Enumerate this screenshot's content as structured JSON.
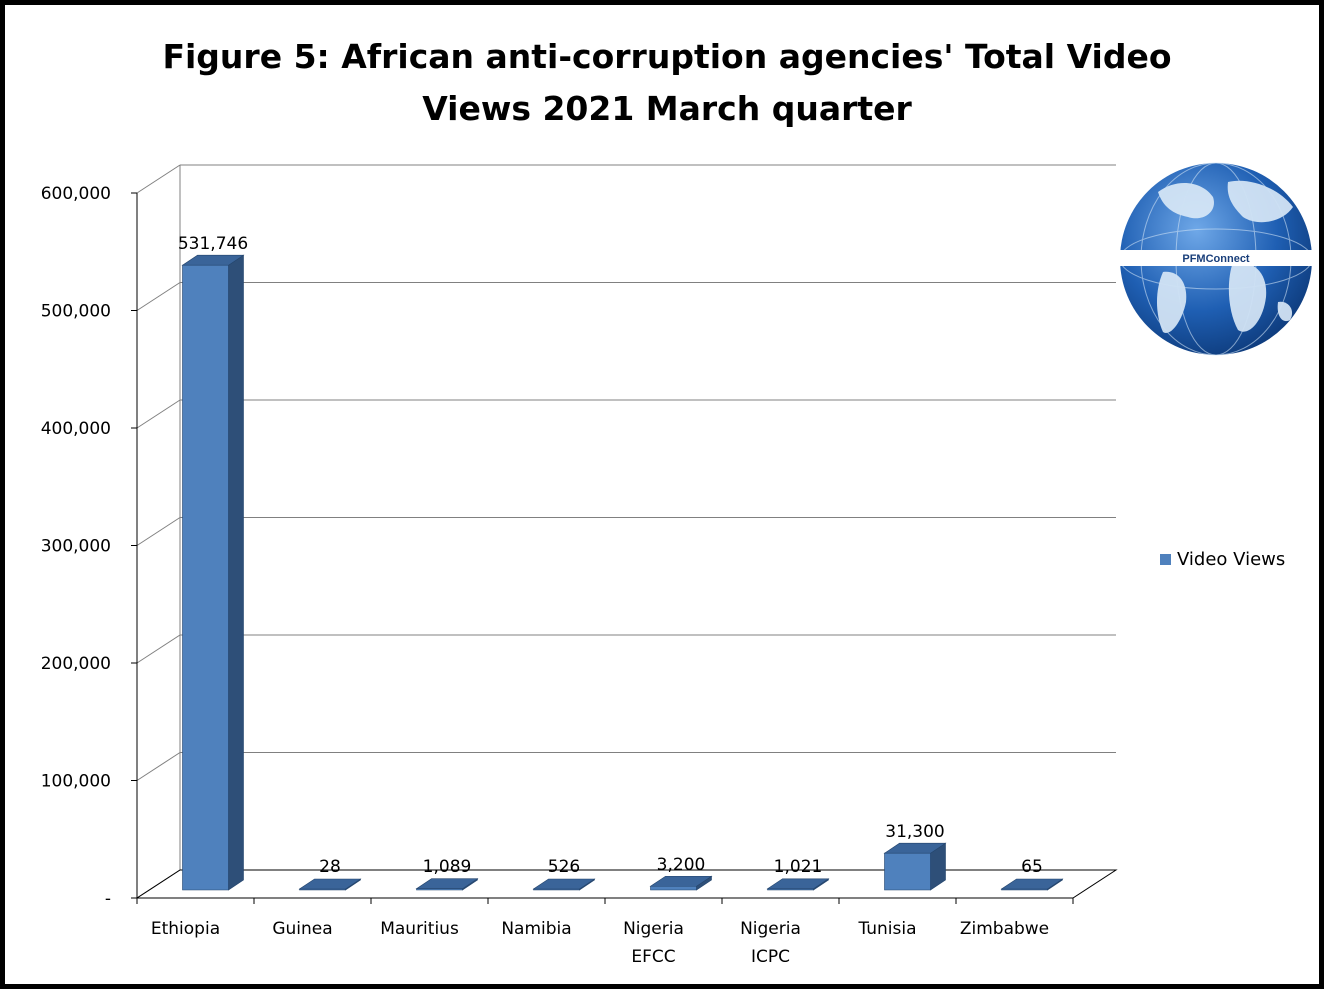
{
  "chart_data": {
    "type": "bar",
    "title": "Figure 5: African anti-corruption agencies' Total Video\nViews 2021 March quarter",
    "categories": [
      "Ethiopia",
      "Guinea",
      "Mauritius",
      "Namibia",
      "Nigeria\nEFCC",
      "Nigeria\nICPC",
      "Tunisia",
      "Zimbabwe"
    ],
    "series": [
      {
        "name": "Video Views",
        "values": [
          531746,
          28,
          1089,
          526,
          3200,
          1021,
          31300,
          65
        ],
        "labels": [
          "531,746",
          "28",
          "1,089",
          "526",
          "3,200",
          "1,021",
          "31,300",
          "65"
        ],
        "color": "#4F81BD"
      }
    ],
    "ylim": [
      0,
      600000
    ],
    "yticks": [
      0,
      100000,
      200000,
      300000,
      400000,
      500000,
      600000
    ],
    "ytick_labels": [
      "-",
      "100,000",
      "200,000",
      "300,000",
      "400,000",
      "500,000",
      "600,000"
    ],
    "xlabel": "",
    "ylabel": "",
    "grid": true,
    "legend": "right",
    "style": "3d-column"
  },
  "logo": {
    "text": "PFMConnect"
  },
  "colors": {
    "bar_front": "#4F81BD",
    "bar_side": "#2E4F78",
    "bar_top": "#3A6499",
    "grid": "#808080"
  }
}
